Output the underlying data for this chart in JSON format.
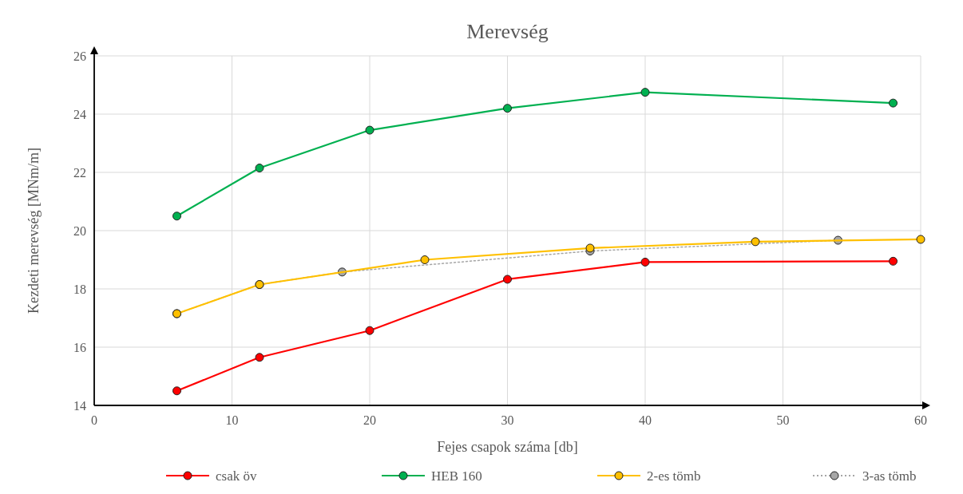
{
  "chart_data": {
    "type": "line",
    "title": "Merevség",
    "xlabel": "Fejes csapok száma [db]",
    "ylabel": "Kezdeti merevség [MNm/m]",
    "xlim": [
      0,
      60
    ],
    "xticks": [
      0,
      10,
      20,
      30,
      40,
      50,
      60
    ],
    "ylim": [
      14,
      26
    ],
    "yticks": [
      14,
      16,
      18,
      20,
      22,
      24,
      26
    ],
    "grid": true,
    "legend": "bottom",
    "marker": "circle",
    "series": [
      {
        "name": "csak öv",
        "color": "#ff0000",
        "x": [
          6,
          12,
          20,
          30,
          40,
          58
        ],
        "values": [
          14.5,
          15.65,
          16.57,
          18.33,
          18.92,
          18.95
        ]
      },
      {
        "name": "HEB 160",
        "color": "#00b050",
        "x": [
          6,
          12,
          20,
          30,
          40,
          58
        ],
        "values": [
          20.5,
          22.15,
          23.45,
          24.2,
          24.75,
          24.38
        ]
      },
      {
        "name": "2-es tömb",
        "color": "#ffc000",
        "x": [
          6,
          12,
          24,
          36,
          48,
          60
        ],
        "values": [
          17.15,
          18.15,
          19.0,
          19.4,
          19.62,
          19.7
        ]
      },
      {
        "name": "3-as tömb",
        "color": "#a6a6a6",
        "line_style": "dotted",
        "x": [
          6,
          12,
          18,
          36,
          54
        ],
        "values": [
          17.15,
          18.15,
          18.58,
          19.3,
          19.67
        ]
      }
    ]
  }
}
